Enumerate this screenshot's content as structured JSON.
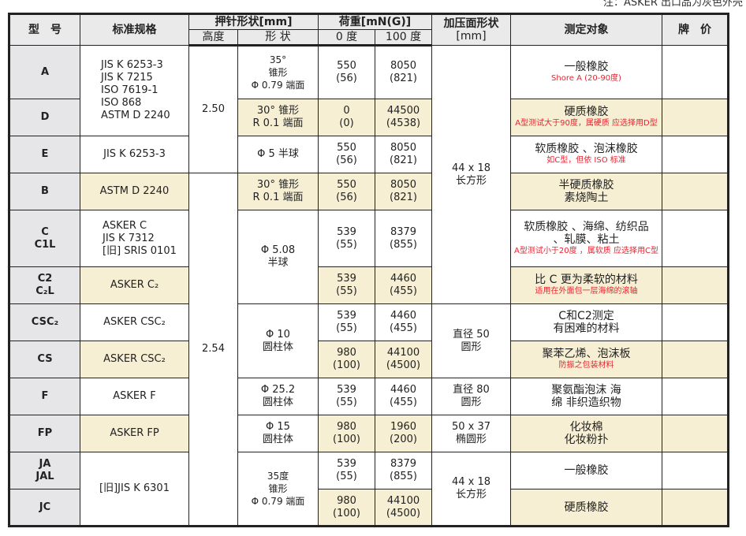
{
  "note": "注：ASKER 出口品为灰色外壳",
  "header": {
    "model": "型　号",
    "spec": "标准规格",
    "indenter": "押针形状[mm]",
    "height": "高度",
    "shape": "形 状",
    "load": "荷重[mN(G)]",
    "load0": "0 度",
    "load100": "100 度",
    "surface": "加压面形状",
    "surface_unit": "[mm]",
    "target": "测定对象",
    "price": "牌　价"
  },
  "highlight_color": "#f7efd3",
  "spans": {
    "spec_ad": "JIS K 6253-3\nJIS K 7215\nISO 7619-1\nISO 868\nASTM D 2240",
    "height_1": "2.50",
    "height_2": "2.54",
    "shape_c": "Φ 5.08\n半球",
    "shape_cs": "Φ 10\n圆柱体",
    "shape_j": "35度\n锥形\nΦ 0.79 端面",
    "surface_1": "44 x 18\n长方形",
    "surface_cs": "直径 50\n圆形",
    "surface_f": "直径 80\n圆形",
    "surface_fp": "50 x 37\n椭圆形",
    "surface_j": "44 x 18\n长方形",
    "spec_j": "[旧]JIS K 6301"
  },
  "rows": [
    {
      "model": "A",
      "shape": "35°\n锥形\nΦ 0.79 端面",
      "l0": "550\n(56)",
      "l100": "8050\n(821)",
      "target": "一般橡胶",
      "note": "Shore A (20-90度)"
    },
    {
      "model": "D",
      "shape": "30° 锥形\nR 0.1 端面",
      "l0": "0\n(0)",
      "l100": "44500\n(4538)",
      "target": "硬质橡胶",
      "note": "A型测试大于90度，属硬质 应选择用D型"
    },
    {
      "model": "E",
      "spec": "JIS K 6253-3",
      "shape": "Φ 5 半球",
      "l0": "550\n(56)",
      "l100": "8050\n(821)",
      "target": "软质橡胶 、泡沫橡胶",
      "note": "如C型，但依 ISO 标准"
    },
    {
      "model": "B",
      "spec": "ASTM D 2240",
      "shape": "30° 锥形\nR 0.1 端面",
      "l0": "550\n(56)",
      "l100": "8050\n(821)",
      "target": "半硬质橡胶\n素烧陶土"
    },
    {
      "model": "C\nC1L",
      "spec": "ASKER  C\nJIS K 7312\n[旧] SRIS 0101",
      "l0": "539\n(55)",
      "l100": "8379\n(855)",
      "target": "软质橡胶 、海绵、纺织品\n、轧膜、粘土",
      "note": "A型测试小于20度 ，属软质 应选择用C型"
    },
    {
      "model": "C2\nC₂L",
      "spec": "ASKER  C₂",
      "l0": "539\n(55)",
      "l100": "4460\n(455)",
      "target": "比 C 更为柔软的材料",
      "note": "适用在外面包一层海绵的滚轴"
    },
    {
      "model": "CSC₂",
      "spec": "ASKER  CSC₂",
      "l0": "539\n(55)",
      "l100": "4460\n(455)",
      "target": "C和C2测定\n有困难的材料"
    },
    {
      "model": "CS",
      "spec": "ASKER  CSC₂",
      "l0": "980\n(100)",
      "l100": "44100\n(4500)",
      "target": "聚苯乙烯、泡沫板",
      "note": "防振之包装材料"
    },
    {
      "model": "F",
      "spec": "ASKER  F",
      "shape": "Φ 25.2\n圆柱体",
      "l0": "539\n(55)",
      "l100": "4460\n(455)",
      "target": "聚氨酯泡沫 海\n绵 非织造织物"
    },
    {
      "model": "FP",
      "spec": "ASKER  FP",
      "shape": "Φ 15\n圆柱体",
      "l0": "980\n(100)",
      "l100": "1960\n(200)",
      "target": "化妆棉\n化妆粉扑"
    },
    {
      "model": "JA\nJAL",
      "l0": "539\n(55)",
      "l100": "8379\n(855)",
      "target": "一般橡胶"
    },
    {
      "model": "JC",
      "l0": "980\n(100)",
      "l100": "44100\n(4500)",
      "target": "硬质橡胶"
    }
  ]
}
